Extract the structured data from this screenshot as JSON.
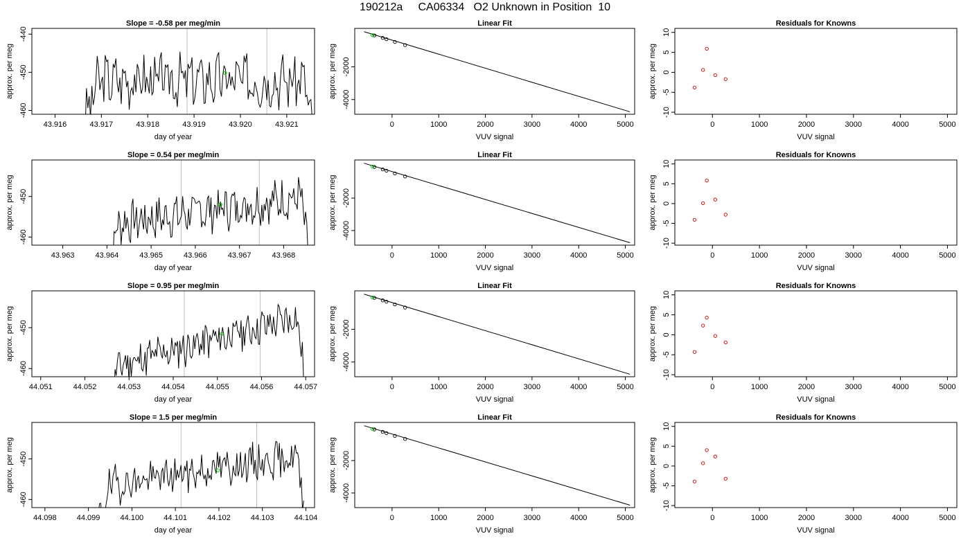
{
  "page_title": "190212a     CA06334   O2 Unknown in Position  10",
  "colors": {
    "trace": "#000000",
    "marker_green": "#00cc00",
    "residual_red": "#cc0000",
    "vline": "#bebebe",
    "frame": "#000000"
  },
  "chart_data": [
    {
      "type": "line",
      "title": "Slope =  -0.58  per meg/min",
      "xlabel": "day of year",
      "ylabel": "approx. per meg",
      "xlim": [
        43.9155,
        43.9216
      ],
      "ylim": [
        -461,
        -438.5
      ],
      "xticks": [
        43.916,
        43.917,
        43.918,
        43.919,
        43.92,
        43.921
      ],
      "xtick_labels": [
        "43.916",
        "43.917",
        "43.918",
        "43.919",
        "43.920",
        "43.921"
      ],
      "yticks": [
        -440,
        -450,
        -460
      ],
      "ytick_labels": [
        "-440",
        "-450",
        "-460"
      ],
      "vlines": [
        43.91885,
        43.92057
      ],
      "marker": {
        "x": 43.91967,
        "y": -450.2
      },
      "trace": {
        "x_start": 43.91665,
        "x_end": 43.92155,
        "base": -452,
        "amp": 6,
        "trend": 0,
        "seed": 3
      }
    },
    {
      "type": "scatter",
      "title": "Linear Fit",
      "xlabel": "VUV signal",
      "ylabel": "approx. per meg",
      "xlim": [
        -800,
        5200
      ],
      "ylim": [
        -4900,
        350
      ],
      "xticks": [
        0,
        1000,
        2000,
        3000,
        4000,
        5000
      ],
      "xtick_labels": [
        "0",
        "1000",
        "2000",
        "3000",
        "4000",
        "5000"
      ],
      "yticks": [
        -2000,
        -4000
      ],
      "ytick_labels": [
        "-2000",
        "-4000"
      ],
      "fit_line": {
        "x": [
          -600,
          5100
        ],
        "y": [
          150,
          -4750
        ]
      },
      "points": {
        "x": [
          -380,
          -200,
          -120,
          60,
          280
        ],
        "y": [
          -80,
          -230,
          -310,
          -480,
          -670
        ]
      },
      "marker": {
        "x": -420,
        "y": -60
      }
    },
    {
      "type": "scatter",
      "title": "Residuals for Knowns",
      "xlabel": "VUV signal",
      "ylabel": "approx. per meg",
      "xlim": [
        -800,
        5200
      ],
      "ylim": [
        -10.5,
        11
      ],
      "xticks": [
        0,
        1000,
        2000,
        3000,
        4000,
        5000
      ],
      "xtick_labels": [
        "0",
        "1000",
        "2000",
        "3000",
        "4000",
        "5000"
      ],
      "yticks": [
        10,
        5,
        0,
        -5,
        -10
      ],
      "ytick_labels": [
        "10",
        "5",
        "0",
        "-5",
        "-10"
      ],
      "points": {
        "x": [
          -380,
          -200,
          -120,
          60,
          280
        ],
        "y": [
          -3.8,
          0.6,
          5.9,
          -0.7,
          -1.7
        ]
      }
    },
    {
      "type": "line",
      "title": "Slope =  0.54  per meg/min",
      "xlabel": "day of year",
      "ylabel": "approx. per meg",
      "xlim": [
        43.9623,
        43.9687
      ],
      "ylim": [
        -462,
        -441
      ],
      "xticks": [
        43.963,
        43.964,
        43.965,
        43.966,
        43.967,
        43.968
      ],
      "xtick_labels": [
        "43.963",
        "43.964",
        "43.965",
        "43.966",
        "43.967",
        "43.968"
      ],
      "yticks": [
        -450,
        -460
      ],
      "ytick_labels": [
        "-450",
        "-460"
      ],
      "vlines": [
        43.96568,
        43.96745
      ],
      "marker": {
        "x": 43.96657,
        "y": -452.0
      },
      "trace": {
        "x_start": 43.964,
        "x_end": 43.96855,
        "base": -457,
        "amp": 4.5,
        "trend": 7,
        "seed": 7
      }
    },
    {
      "type": "scatter",
      "title": "Linear Fit",
      "xlabel": "VUV signal",
      "ylabel": "approx. per meg",
      "xlim": [
        -800,
        5200
      ],
      "ylim": [
        -4900,
        350
      ],
      "xticks": [
        0,
        1000,
        2000,
        3000,
        4000,
        5000
      ],
      "xtick_labels": [
        "0",
        "1000",
        "2000",
        "3000",
        "4000",
        "5000"
      ],
      "yticks": [
        -2000,
        -4000
      ],
      "ytick_labels": [
        "-2000",
        "-4000"
      ],
      "fit_line": {
        "x": [
          -600,
          5100
        ],
        "y": [
          150,
          -4750
        ]
      },
      "points": {
        "x": [
          -380,
          -200,
          -120,
          60,
          280
        ],
        "y": [
          -80,
          -230,
          -310,
          -480,
          -670
        ]
      },
      "marker": {
        "x": -420,
        "y": -60
      }
    },
    {
      "type": "scatter",
      "title": "Residuals for Knowns",
      "xlabel": "VUV signal",
      "ylabel": "approx. per meg",
      "xlim": [
        -800,
        5200
      ],
      "ylim": [
        -10.5,
        11
      ],
      "xticks": [
        0,
        1000,
        2000,
        3000,
        4000,
        5000
      ],
      "xtick_labels": [
        "0",
        "1000",
        "2000",
        "3000",
        "4000",
        "5000"
      ],
      "yticks": [
        10,
        5,
        0,
        -5,
        -10
      ],
      "ytick_labels": [
        "10",
        "5",
        "0",
        "-5",
        "-10"
      ],
      "points": {
        "x": [
          -380,
          -200,
          -120,
          60,
          280
        ],
        "y": [
          -4.1,
          0.1,
          5.8,
          1.0,
          -2.8
        ]
      }
    },
    {
      "type": "line",
      "title": "Slope =  0.95  per meg/min",
      "xlabel": "day of year",
      "ylabel": "approx. per meg",
      "xlim": [
        44.0508,
        44.0572
      ],
      "ylim": [
        -462,
        -441
      ],
      "xticks": [
        44.051,
        44.052,
        44.053,
        44.054,
        44.055,
        44.056,
        44.057
      ],
      "xtick_labels": [
        "44.051",
        "44.052",
        "44.053",
        "44.054",
        "44.055",
        "44.056",
        "44.057"
      ],
      "yticks": [
        -450,
        -460
      ],
      "ytick_labels": [
        "-450",
        "-460"
      ],
      "vlines": [
        44.05425,
        44.05597
      ],
      "marker": {
        "x": 44.0551,
        "y": -451.5
      },
      "trace": {
        "x_start": 44.0525,
        "x_end": 44.05695,
        "base": -460,
        "amp": 4,
        "trend": 13,
        "seed": 11
      }
    },
    {
      "type": "scatter",
      "title": "Linear Fit",
      "xlabel": "VUV signal",
      "ylabel": "approx. per meg",
      "xlim": [
        -800,
        5200
      ],
      "ylim": [
        -4900,
        350
      ],
      "xticks": [
        0,
        1000,
        2000,
        3000,
        4000,
        5000
      ],
      "xtick_labels": [
        "0",
        "1000",
        "2000",
        "3000",
        "4000",
        "5000"
      ],
      "yticks": [
        -2000,
        -4000
      ],
      "ytick_labels": [
        "-2000",
        "-4000"
      ],
      "fit_line": {
        "x": [
          -600,
          5100
        ],
        "y": [
          150,
          -4750
        ]
      },
      "points": {
        "x": [
          -380,
          -200,
          -120,
          60,
          280
        ],
        "y": [
          -80,
          -230,
          -310,
          -480,
          -670
        ]
      },
      "marker": {
        "x": -420,
        "y": -60
      }
    },
    {
      "type": "scatter",
      "title": "Residuals for Knowns",
      "xlabel": "VUV signal",
      "ylabel": "approx. per meg",
      "xlim": [
        -800,
        5200
      ],
      "ylim": [
        -10.5,
        11
      ],
      "xticks": [
        0,
        1000,
        2000,
        3000,
        4000,
        5000
      ],
      "xtick_labels": [
        "0",
        "1000",
        "2000",
        "3000",
        "4000",
        "5000"
      ],
      "yticks": [
        10,
        5,
        0,
        -5,
        -10
      ],
      "ytick_labels": [
        "10",
        "5",
        "0",
        "-5",
        "-10"
      ],
      "points": {
        "x": [
          -380,
          -200,
          -120,
          60,
          280
        ],
        "y": [
          -4.3,
          2.3,
          4.3,
          -0.3,
          -1.9
        ]
      }
    },
    {
      "type": "line",
      "title": "Slope =  1.5  per meg/min",
      "xlabel": "day of year",
      "ylabel": "approx. per meg",
      "xlim": [
        44.0977,
        44.1042
      ],
      "ylim": [
        -462,
        -441
      ],
      "xticks": [
        44.098,
        44.099,
        44.1,
        44.101,
        44.102,
        44.103,
        44.104
      ],
      "xtick_labels": [
        "44.098",
        "44.099",
        "44.100",
        "44.101",
        "44.102",
        "44.103",
        "44.104"
      ],
      "yticks": [
        -450,
        -460
      ],
      "ytick_labels": [
        "-450",
        "-460"
      ],
      "vlines": [
        44.10113,
        44.10287
      ],
      "marker": {
        "x": 44.10198,
        "y": -452.8
      },
      "trace": {
        "x_start": 44.0992,
        "x_end": 44.10395,
        "base": -457,
        "amp": 4,
        "trend": 8,
        "seed": 19
      }
    },
    {
      "type": "scatter",
      "title": "Linear Fit",
      "xlabel": "VUV signal",
      "ylabel": "approx. per meg",
      "xlim": [
        -800,
        5200
      ],
      "ylim": [
        -4900,
        350
      ],
      "xticks": [
        0,
        1000,
        2000,
        3000,
        4000,
        5000
      ],
      "xtick_labels": [
        "0",
        "1000",
        "2000",
        "3000",
        "4000",
        "5000"
      ],
      "yticks": [
        -2000,
        -4000
      ],
      "ytick_labels": [
        "-2000",
        "-4000"
      ],
      "fit_line": {
        "x": [
          -600,
          5100
        ],
        "y": [
          150,
          -4750
        ]
      },
      "points": {
        "x": [
          -380,
          -200,
          -120,
          60,
          280
        ],
        "y": [
          -80,
          -230,
          -310,
          -480,
          -670
        ]
      },
      "marker": {
        "x": -420,
        "y": -60
      }
    },
    {
      "type": "scatter",
      "title": "Residuals for Knowns",
      "xlabel": "VUV signal",
      "ylabel": "approx. per meg",
      "xlim": [
        -800,
        5200
      ],
      "ylim": [
        -10.5,
        11
      ],
      "xticks": [
        0,
        1000,
        2000,
        3000,
        4000,
        5000
      ],
      "xtick_labels": [
        "0",
        "1000",
        "2000",
        "3000",
        "4000",
        "5000"
      ],
      "yticks": [
        10,
        5,
        0,
        -5,
        -10
      ],
      "ytick_labels": [
        "10",
        "5",
        "0",
        "-5",
        "-10"
      ],
      "points": {
        "x": [
          -380,
          -200,
          -120,
          60,
          280
        ],
        "y": [
          -3.9,
          0.7,
          4.0,
          2.4,
          -3.2
        ]
      }
    }
  ]
}
